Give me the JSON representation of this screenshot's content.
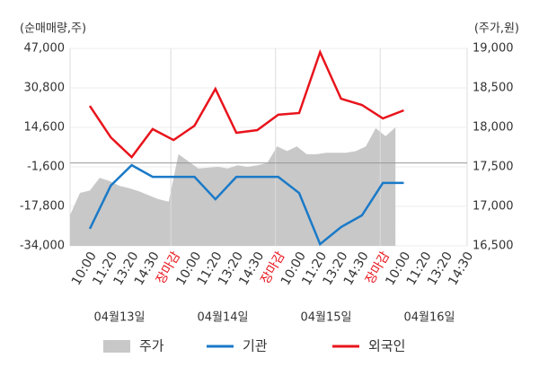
{
  "chart_data": {
    "type": "line",
    "y_label": "(순매매량,주)",
    "y2_label": "(주가,원)",
    "categories": [
      "10:00",
      "11:20",
      "13:20",
      "14:30",
      "장마감",
      "10:00",
      "11:20",
      "13:20",
      "14:30",
      "장마감",
      "10:00",
      "11:20",
      "13:20",
      "14:30",
      "장마감",
      "10:00",
      "11:20",
      "13:20",
      "14:30"
    ],
    "dates": [
      "04월13일",
      "04월14일",
      "04월15일",
      "04월16일"
    ],
    "ylim": [
      -34000,
      47000
    ],
    "yticks": [
      {
        "value": 47000,
        "label": "47,000"
      },
      {
        "value": 30800,
        "label": "30,800"
      },
      {
        "value": 14600,
        "label": "14,600"
      },
      {
        "value": -1600,
        "label": "-1,600"
      },
      {
        "value": -17800,
        "label": "-17,800"
      },
      {
        "value": -34000,
        "label": "-34,000"
      }
    ],
    "y2lim": [
      16500,
      19000
    ],
    "y2ticks": [
      {
        "value": 19000,
        "label": "19,000"
      },
      {
        "value": 18500,
        "label": "18,500"
      },
      {
        "value": 18000,
        "label": "18,000"
      },
      {
        "value": 17500,
        "label": "17,500"
      },
      {
        "value": 17000,
        "label": "17,000"
      },
      {
        "value": 16500,
        "label": "16,500"
      }
    ],
    "grid": true,
    "price": {
      "name": "주가",
      "color": "#c8c8c8",
      "axis": "y2",
      "values": [
        16890,
        17170,
        17200,
        17360,
        17320,
        17260,
        17230,
        17190,
        17140,
        17090,
        17060,
        17660,
        17570,
        17480,
        17490,
        17500,
        17480,
        17520,
        17500,
        17520,
        17550,
        17760,
        17700,
        17760,
        17660,
        17660,
        17680,
        17680,
        17680,
        17700,
        17760,
        17990,
        17890,
        18000
      ]
    },
    "series": [
      {
        "name": "기관",
        "color": "#1a7ac8",
        "values": [
          -27000,
          -9300,
          -900,
          -5700,
          -5700,
          -5700,
          -14900,
          -5700,
          -5700,
          -5700,
          -12300,
          -33300,
          -26300,
          -21500,
          -8200,
          -8200,
          null,
          null,
          null
        ]
      },
      {
        "name": "외국인",
        "color": "#e8141c",
        "values": [
          23400,
          10500,
          2400,
          13900,
          9400,
          15300,
          30400,
          12400,
          13500,
          19800,
          20500,
          45500,
          26400,
          23800,
          18300,
          21600,
          null,
          null,
          null
        ]
      }
    ]
  }
}
